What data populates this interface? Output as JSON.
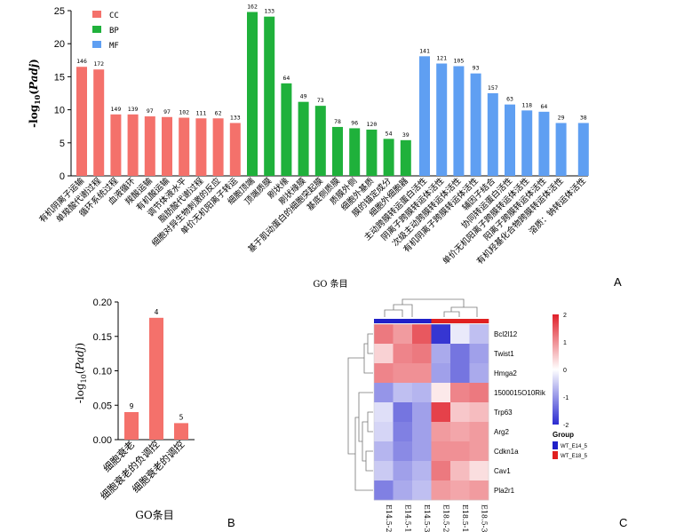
{
  "panel_labels": {
    "a": "A",
    "b": "B",
    "c": "C"
  },
  "chart_data": [
    {
      "type": "bar",
      "panel": "A",
      "ylabel": "-log10(Padj)",
      "xlabel": "GO 条目",
      "ylim": [
        0,
        25
      ],
      "yticks": [
        0,
        5,
        10,
        15,
        20,
        25
      ],
      "legend": {
        "placement": "top-left",
        "items": [
          {
            "name": "CC",
            "color": "#f4716b"
          },
          {
            "name": "BP",
            "color": "#1fb13b"
          },
          {
            "name": "MF",
            "color": "#5f9ff2"
          }
        ]
      },
      "categories": [
        "有机阴离子运输",
        "单羧酸代谢过程",
        "循环系统过程",
        "血液循环",
        "羧酸运输",
        "有机酸运输",
        "调节体液水平",
        "脂肪酸代谢过程",
        "细胞对异生物刺激的反应",
        "单价无机阳离子转运",
        "细胞顶端",
        "顶端质膜",
        "刷状缘",
        "刷状缘膜",
        "基于肌动蛋白的细胞突起膜",
        "基底侧质膜",
        "质膜外侧",
        "细胞外基质",
        "膜的锚定成分",
        "细胞外细胞器",
        "主动跨膜转运蛋白活性",
        "阴离子跨膜转运体活性",
        "次级主动跨膜转运体活性",
        "有机阴离子跨膜转运体活性",
        "辅因子结合",
        "协同转运蛋白活性",
        "单价无机阳离子跨膜转运体活性",
        "阳离子跨膜转运体活性",
        "有机羟基化合物跨膜转运体活性",
        "溶质：钠转运体活性"
      ],
      "values": [
        16.5,
        16.1,
        9.3,
        9.3,
        9.0,
        8.9,
        8.8,
        8.7,
        8.7,
        8.0,
        24.8,
        24.1,
        14.0,
        11.2,
        10.6,
        7.4,
        7.2,
        7.0,
        5.6,
        5.4,
        18.1,
        17.0,
        16.6,
        15.5,
        12.5,
        10.8,
        9.9,
        9.7,
        8.0,
        8.0
      ],
      "groups": [
        "CC",
        "CC",
        "CC",
        "CC",
        "CC",
        "CC",
        "CC",
        "CC",
        "CC",
        "CC",
        "BP",
        "BP",
        "BP",
        "BP",
        "BP",
        "BP",
        "BP",
        "BP",
        "BP",
        "BP",
        "MF",
        "MF",
        "MF",
        "MF",
        "MF",
        "MF",
        "MF",
        "MF",
        "MF",
        "MF"
      ],
      "data_labels": [
        "146",
        "172",
        "149",
        "139",
        "97",
        "97",
        "102",
        "111",
        "62",
        "133",
        "162",
        "133",
        "64",
        "49",
        "73",
        "78",
        "96",
        "120",
        "54",
        "39",
        "141",
        "121",
        "105",
        "93",
        "157",
        "63",
        "118",
        "64",
        "29",
        "38"
      ]
    },
    {
      "type": "bar",
      "panel": "B",
      "ylabel": "-log10(Padj)",
      "xlabel": "GO条目",
      "ylim": [
        0,
        0.2
      ],
      "yticks": [
        "0.00",
        "0.05",
        "0.10",
        "0.15",
        "0.20"
      ],
      "categories": [
        "细胞衰老",
        "细胞衰老的负调控",
        "细胞衰老的调控"
      ],
      "values": [
        0.04,
        0.177,
        0.024
      ],
      "data_labels": [
        "9",
        "4",
        "5"
      ],
      "color": "#f4716b"
    },
    {
      "type": "heatmap",
      "panel": "C",
      "rows": [
        "Bcl2l12",
        "Twist1",
        "Hmga2",
        "1500015O10Rik",
        "Trp63",
        "Arg2",
        "Cdkn1a",
        "Cav1",
        "Pla2r1"
      ],
      "columns": [
        "E14.5-2",
        "E14.5-1",
        "E14.5-3",
        "E18.5-2",
        "E18.5-1",
        "E18.5-3"
      ],
      "column_groups": [
        "WT_E14_5",
        "WT_E14_5",
        "WT_E14_5",
        "WT_E18_5",
        "WT_E18_5",
        "WT_E18_5"
      ],
      "values": [
        [
          1.2,
          0.9,
          1.5,
          -1.9,
          -0.2,
          -0.6
        ],
        [
          0.4,
          1.1,
          1.2,
          -0.8,
          -1.3,
          -0.9
        ],
        [
          1.1,
          1.0,
          1.0,
          -0.9,
          -1.3,
          -0.8
        ],
        [
          -1.0,
          -0.6,
          -0.7,
          0.2,
          1.1,
          1.2
        ],
        [
          -0.3,
          -1.3,
          -0.9,
          1.7,
          0.5,
          0.6
        ],
        [
          -0.4,
          -1.2,
          -0.9,
          0.9,
          0.8,
          0.9
        ],
        [
          -0.7,
          -1.1,
          -0.9,
          1.0,
          1.0,
          0.9
        ],
        [
          -0.5,
          -0.9,
          -0.7,
          1.2,
          0.6,
          0.3
        ],
        [
          -1.2,
          -0.8,
          -0.6,
          0.9,
          0.8,
          0.9
        ]
      ],
      "scale": {
        "min": -2,
        "max": 2,
        "ticks": [
          "2",
          "1",
          "0",
          "-1",
          "-2"
        ],
        "low_color": "#2b2bd0",
        "mid_color": "#ffffff",
        "high_color": "#e0202a"
      },
      "legend": {
        "title": "Group",
        "items": [
          {
            "name": "WT_E14_5",
            "color": "#2020c8"
          },
          {
            "name": "WT_E18_5",
            "color": "#e02020"
          }
        ]
      }
    }
  ]
}
